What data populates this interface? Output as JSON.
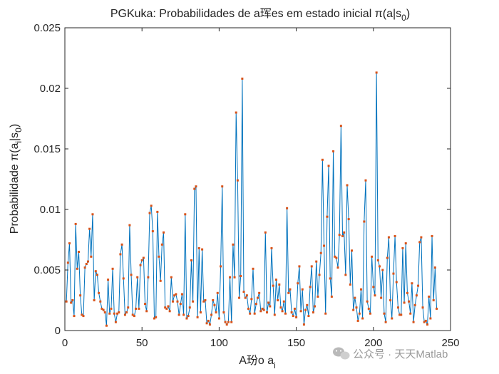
{
  "chart_data": {
    "type": "line",
    "title": "PGKuka: Probabilidades de a珲es em estado inicial π(a|s0)",
    "title_parts": {
      "main": "PGKuka: Probabilidades de a珲es em estado inicial π(a|s",
      "sub": "0",
      "end": ")"
    },
    "xlabel": "A玢o a",
    "xlabel_sub": "i",
    "ylabel": "Probabilidade π(a",
    "ylabel_sub1": "i",
    "ylabel_mid": "|s",
    "ylabel_sub2": "0",
    "ylabel_end": ")",
    "xlim": [
      0,
      250
    ],
    "ylim": [
      0,
      0.025
    ],
    "x_ticks": [
      0,
      50,
      100,
      150,
      200,
      250
    ],
    "x_tick_labels": [
      "0",
      "50",
      "100",
      "150",
      "200",
      "250"
    ],
    "y_ticks": [
      0,
      0.005,
      0.01,
      0.015,
      0.02,
      0.025
    ],
    "y_tick_labels": [
      "0",
      "0.005",
      "0.01",
      "0.015",
      "0.02",
      "0.025"
    ],
    "grid": false,
    "line_color": "#0072BD",
    "marker_color": "#D95319",
    "series": [
      {
        "x_start": 1,
        "values": [
          0.0024,
          0.0056,
          0.0072,
          0.0023,
          0.0025,
          0.0012,
          0.0088,
          0.0051,
          0.0065,
          0.0029,
          0.0013,
          0.0012,
          0.0052,
          0.0055,
          0.0057,
          0.0084,
          0.0061,
          0.0096,
          0.0025,
          0.0049,
          0.0046,
          0.0031,
          0.0024,
          0.0018,
          0.0017,
          0.0015,
          0.0004,
          0.0042,
          0.0014,
          0.0018,
          0.0051,
          0.0014,
          0.0007,
          0.0014,
          0.0015,
          0.0063,
          0.0071,
          0.0043,
          0.0013,
          0.0015,
          0.0019,
          0.0087,
          0.0046,
          0.0013,
          0.0012,
          0.0018,
          0.0044,
          0.0018,
          0.0054,
          0.0058,
          0.006,
          0.0022,
          0.0016,
          0.0044,
          0.0097,
          0.0103,
          0.0082,
          0.001,
          0.0011,
          0.0098,
          0.0061,
          0.0041,
          0.0071,
          0.0081,
          0.0019,
          0.0018,
          0.002,
          0.0016,
          0.0044,
          0.0024,
          0.0029,
          0.003,
          0.0024,
          0.0013,
          0.0022,
          0.003,
          0.0013,
          0.0096,
          0.001,
          0.0012,
          0.0019,
          0.0058,
          0.0024,
          0.0117,
          0.0119,
          0.0011,
          0.0068,
          0.0015,
          0.0067,
          0.0024,
          0.0025,
          0.0006,
          0.0008,
          0.0005,
          0.0013,
          0.0025,
          0.0021,
          0.0015,
          0.0031,
          0.001,
          0.0053,
          0.0119,
          0.0015,
          0.0007,
          0.0005,
          0.0007,
          0.0044,
          0.0007,
          0.0071,
          0.0044,
          0.018,
          0.0124,
          0.0027,
          0.0045,
          0.0208,
          0.0032,
          0.0027,
          0.0029,
          0.0018,
          0.0014,
          0.0026,
          0.0051,
          0.0014,
          0.0022,
          0.0027,
          0.0031,
          0.0016,
          0.0018,
          0.0017,
          0.0081,
          0.0015,
          0.0023,
          0.002,
          0.0068,
          0.0037,
          0.0013,
          0.0042,
          0.0025,
          0.0038,
          0.0019,
          0.0016,
          0.0024,
          0.0014,
          0.0101,
          0.0031,
          0.0034,
          0.0015,
          0.0012,
          0.0018,
          0.0011,
          0.0039,
          0.0053,
          0.0016,
          0.0034,
          0.0005,
          0.0017,
          0.0021,
          0.0012,
          0.0036,
          0.0053,
          0.0015,
          0.002,
          0.0057,
          0.0028,
          0.0046,
          0.0064,
          0.0141,
          0.007,
          0.0014,
          0.0094,
          0.0136,
          0.0043,
          0.0028,
          0.0148,
          0.0061,
          0.006,
          0.0052,
          0.0079,
          0.0169,
          0.0078,
          0.0081,
          0.0046,
          0.012,
          0.0092,
          0.0038,
          0.0066,
          0.0017,
          0.0027,
          0.0019,
          0.0008,
          0.0014,
          0.0034,
          0.001,
          0.009,
          0.0124,
          0.0024,
          0.0018,
          0.0014,
          0.0061,
          0.0036,
          0.0029,
          0.0213,
          0.0058,
          0.0053,
          0.0027,
          0.005,
          0.0014,
          0.0007,
          0.006,
          0.0077,
          0.0025,
          0.001,
          0.0047,
          0.0078,
          0.004,
          0.0019,
          0.0013,
          0.0013,
          0.0068,
          0.0023,
          0.0072,
          0.0031,
          0.0024,
          0.0014,
          0.0039,
          0.0007,
          0.0021,
          0.0029,
          0.0037,
          0.0073,
          0.0077,
          0.0019,
          0.0007,
          0.0008,
          0.0005,
          0.0028,
          0.001,
          0.0078,
          0.0025,
          0.0052,
          0.0018
        ]
      }
    ]
  },
  "watermark": {
    "icon": "wechat-icon",
    "text": "公众号 · 天天Matlab"
  }
}
